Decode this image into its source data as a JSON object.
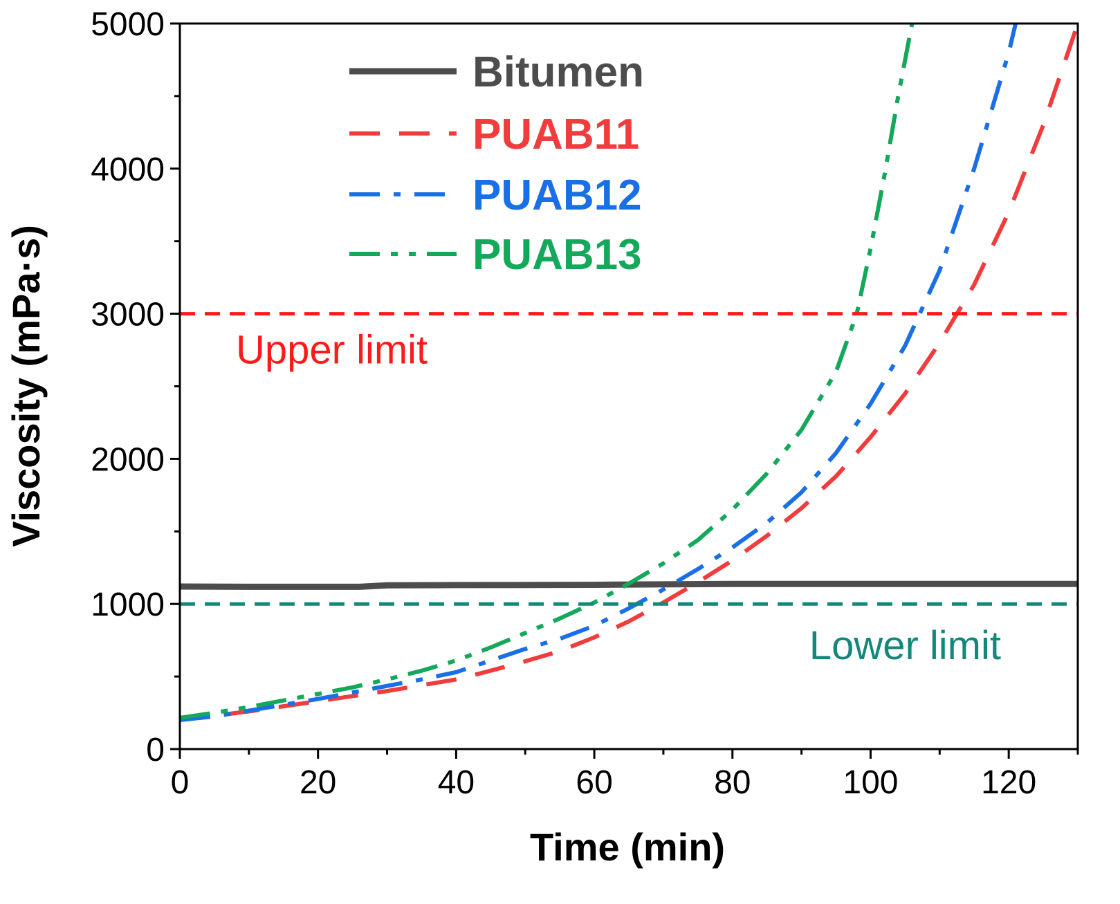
{
  "chart_data": {
    "type": "line",
    "title": "",
    "xlabel": "Time (min)",
    "ylabel": "Viscosity (mPa·s)",
    "xlim": [
      0,
      130
    ],
    "ylim": [
      0,
      5000
    ],
    "x_ticks": [
      0,
      20,
      40,
      60,
      80,
      100,
      120
    ],
    "y_ticks": [
      0,
      1000,
      2000,
      3000,
      4000,
      5000
    ],
    "x_tick_labels": [
      "0",
      "20",
      "40",
      "60",
      "80",
      "100",
      "120"
    ],
    "y_tick_labels": [
      "0",
      "1000",
      "2000",
      "3000",
      "4000",
      "5000"
    ],
    "grid": false,
    "legend_position": "top-center",
    "series": [
      {
        "name": "Bitumen",
        "color": "#4d4d4d",
        "style": "solid",
        "x": [
          0,
          10,
          20,
          26,
          30,
          40,
          60,
          80,
          100,
          120,
          130
        ],
        "y": [
          1120,
          1118,
          1118,
          1118,
          1128,
          1130,
          1132,
          1138,
          1138,
          1138,
          1138
        ]
      },
      {
        "name": "PUAB11",
        "color": "#f03c3c",
        "style": "dash",
        "x": [
          0,
          5,
          10,
          15,
          20,
          25,
          30,
          35,
          40,
          45,
          50,
          55,
          60,
          65,
          70,
          75,
          80,
          85,
          90,
          95,
          100,
          105,
          110,
          115,
          120,
          125,
          130
        ],
        "y": [
          205,
          230,
          260,
          295,
          330,
          365,
          400,
          440,
          480,
          540,
          605,
          675,
          770,
          880,
          1010,
          1150,
          1300,
          1470,
          1660,
          1880,
          2150,
          2450,
          2800,
          3200,
          3700,
          4300,
          5000
        ]
      },
      {
        "name": "PUAB12",
        "color": "#1a6fe6",
        "style": "dashdot",
        "x": [
          0,
          5,
          10,
          15,
          20,
          25,
          30,
          35,
          40,
          45,
          50,
          55,
          60,
          65,
          70,
          75,
          80,
          85,
          90,
          95,
          100,
          105,
          110,
          115,
          120,
          121
        ],
        "y": [
          200,
          225,
          265,
          305,
          345,
          390,
          435,
          480,
          530,
          610,
          690,
          760,
          850,
          970,
          1100,
          1240,
          1390,
          1560,
          1770,
          2040,
          2380,
          2780,
          3300,
          4000,
          4800,
          5000
        ]
      },
      {
        "name": "PUAB13",
        "color": "#14a85a",
        "style": "dashdotdot",
        "x": [
          0,
          5,
          10,
          15,
          20,
          25,
          30,
          35,
          40,
          45,
          50,
          55,
          60,
          65,
          70,
          75,
          80,
          85,
          90,
          95,
          98,
          100,
          102,
          104,
          106
        ],
        "y": [
          215,
          250,
          290,
          335,
          380,
          425,
          480,
          540,
          610,
          700,
          800,
          900,
          1010,
          1140,
          1280,
          1440,
          1650,
          1900,
          2200,
          2600,
          3000,
          3450,
          3950,
          4500,
          5000
        ]
      }
    ],
    "reference_lines": [
      {
        "name": "Upper limit",
        "label": "Upper limit",
        "y": 3000,
        "color": "#ff1a1a"
      },
      {
        "name": "Lower limit",
        "label": "Lower limit",
        "y": 1000,
        "color": "#13877a"
      }
    ]
  }
}
